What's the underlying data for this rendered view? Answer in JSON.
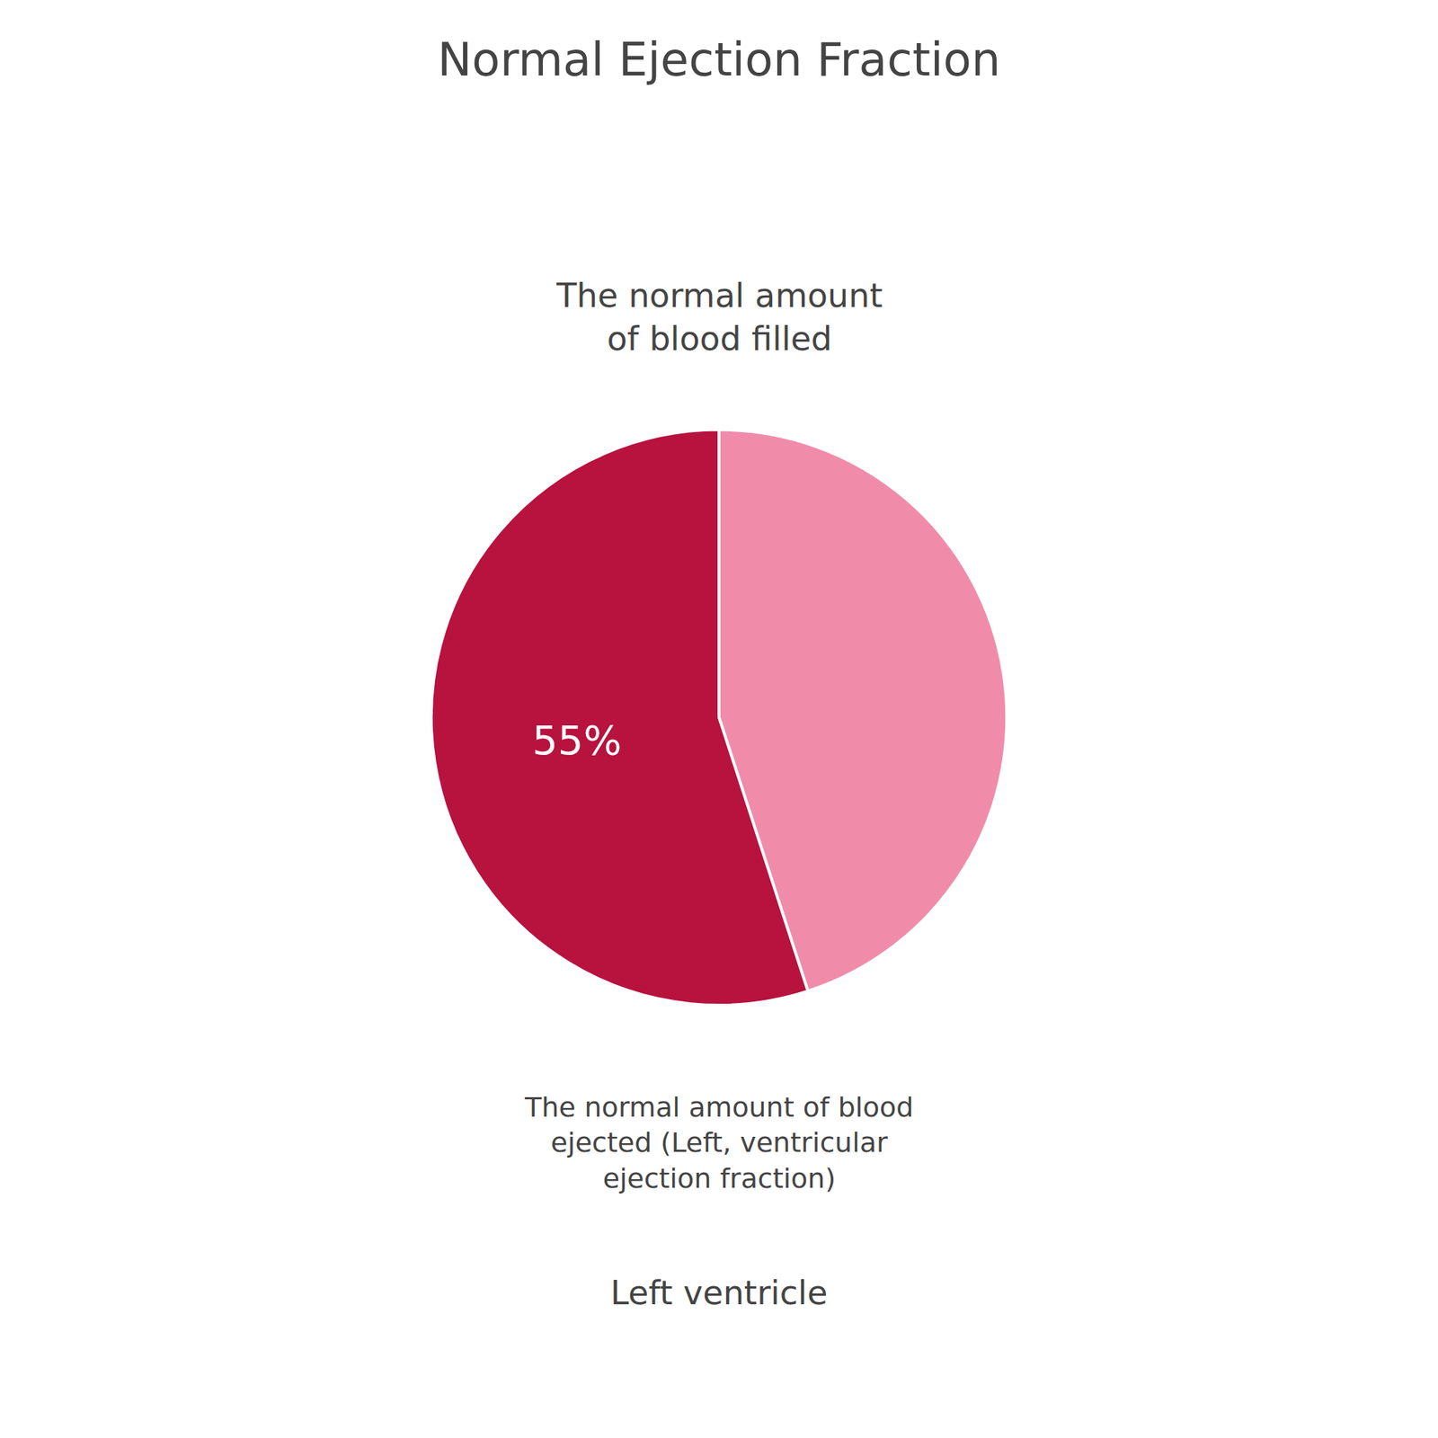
{
  "chart_data": {
    "type": "pie",
    "title": "Normal Ejection Fraction",
    "values": [
      45,
      55
    ],
    "value_labels": [
      null,
      "55%"
    ],
    "colors": [
      "#f08caa",
      "#b8123e"
    ],
    "data_labels": true,
    "annotations": [
      "The normal amount\nof blood filled",
      "The normal amount of blood\nejected (Left, ventricular\nejection fraction)",
      "Left ventricle"
    ]
  }
}
